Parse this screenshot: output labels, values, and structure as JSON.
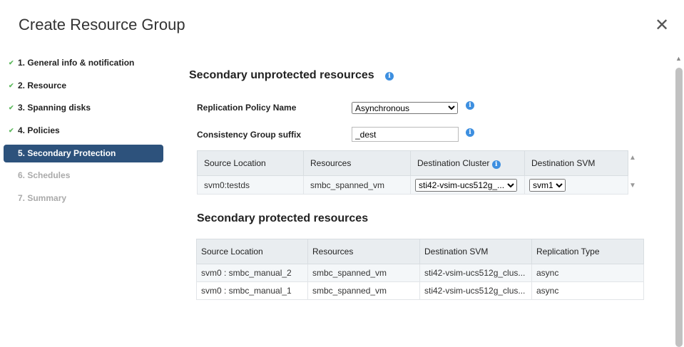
{
  "dialog": {
    "title": "Create Resource Group",
    "close_icon": "close-icon"
  },
  "steps": [
    {
      "label": "1. General info & notification",
      "state": "done"
    },
    {
      "label": "2. Resource",
      "state": "done"
    },
    {
      "label": "3. Spanning disks",
      "state": "done"
    },
    {
      "label": "4. Policies",
      "state": "done"
    },
    {
      "label": "5. Secondary Protection",
      "state": "active"
    },
    {
      "label": "6. Schedules",
      "state": "disabled"
    },
    {
      "label": "7. Summary",
      "state": "disabled"
    }
  ],
  "unprotected": {
    "title": "Secondary unprotected resources",
    "policy_label": "Replication Policy Name",
    "policy_value": "Asynchronous",
    "suffix_label": "Consistency Group suffix",
    "suffix_value": "_dest",
    "columns": [
      "Source Location",
      "Resources",
      "Destination Cluster",
      "Destination SVM"
    ],
    "rows": [
      {
        "source": "svm0:testds",
        "resources": "smbc_spanned_vm",
        "cluster": "sti42-vsim-ucs512g_...",
        "svm": "svm1"
      }
    ]
  },
  "protected": {
    "title": "Secondary protected resources",
    "columns": [
      "Source Location",
      "Resources",
      "Destination SVM",
      "Replication Type"
    ],
    "rows": [
      [
        "svm0 : smbc_manual_2",
        "smbc_spanned_vm",
        "sti42-vsim-ucs512g_clus...",
        "async"
      ],
      [
        "svm0 : smbc_manual_1",
        "smbc_spanned_vm",
        "sti42-vsim-ucs512g_clus...",
        "async"
      ]
    ]
  },
  "colors": {
    "accent": "#2d527c",
    "info": "#3d8fe0",
    "check": "#5cb85c"
  }
}
